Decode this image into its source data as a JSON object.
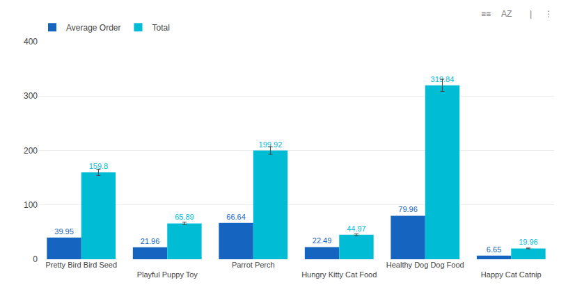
{
  "chart_data": {
    "type": "bar",
    "categories": [
      "Pretty Bird Bird Seed",
      "Playful Puppy Toy",
      "Parrot Perch",
      "Hungry Kitty Cat Food",
      "Healthy Dog Dog Food",
      "Happy Cat Catnip"
    ],
    "series": [
      {
        "name": "Average Order",
        "color": "#1565C0",
        "values": [
          39.95,
          21.96,
          66.64,
          22.49,
          79.96,
          6.65
        ]
      },
      {
        "name": "Total",
        "color": "#00BCD4",
        "values": [
          159.8,
          65.89,
          199.92,
          44.97,
          319.84,
          19.96
        ],
        "error": [
          5.593,
          2.30615,
          6.9972,
          1.57395,
          11.1944,
          0.6986
        ]
      }
    ],
    "ylim": [
      0,
      400
    ],
    "yticks": [
      0,
      100,
      200,
      300,
      400
    ],
    "grid": true,
    "legend": "top left",
    "data_labels": true,
    "annotations": [
      "≡≡",
      "AZ",
      "|",
      "⋮"
    ]
  }
}
